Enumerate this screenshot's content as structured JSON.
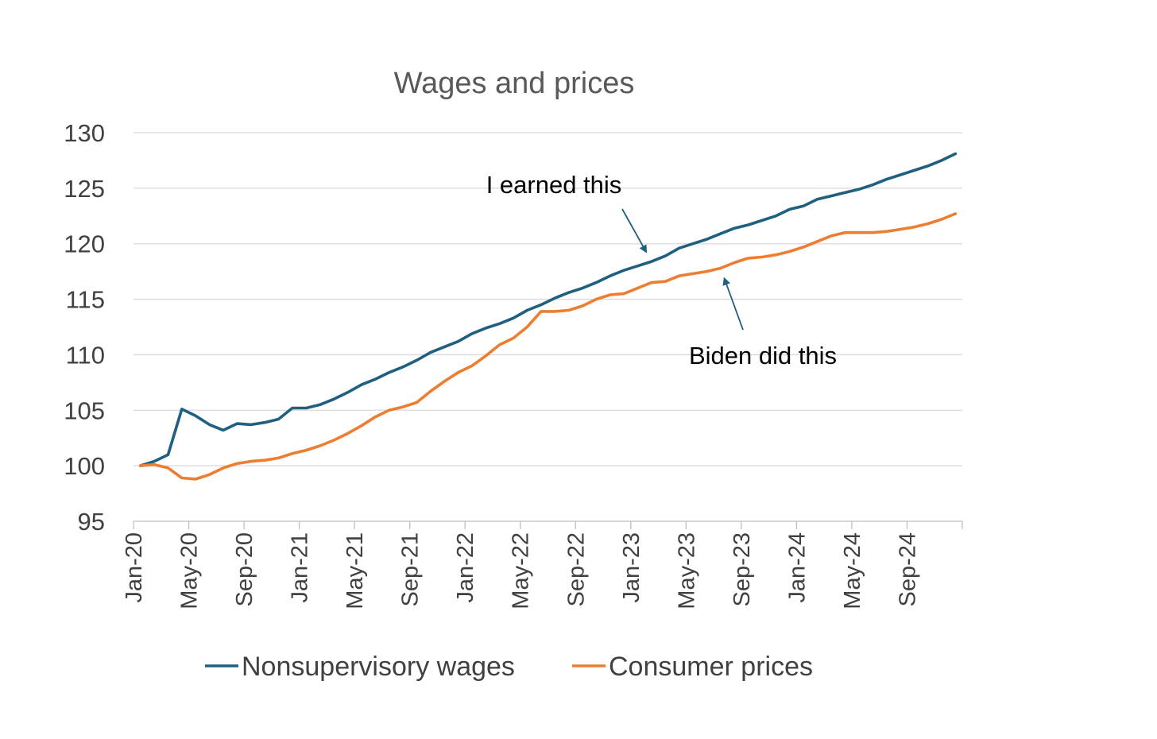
{
  "chart_data": {
    "type": "line",
    "title": "Wages and prices",
    "xlabel": "",
    "ylabel": "",
    "ylim": [
      95,
      130
    ],
    "yticks": [
      "95",
      "100",
      "105",
      "110",
      "115",
      "120",
      "125",
      "130"
    ],
    "grid": true,
    "legend_position": "bottom",
    "x_tick_labels": [
      "Jan-20",
      "May-20",
      "Sep-20",
      "Jan-21",
      "May-21",
      "Sep-21",
      "Jan-22",
      "May-22",
      "Sep-22",
      "Jan-23",
      "May-23",
      "Sep-23",
      "Jan-24",
      "May-24",
      "Sep-24"
    ],
    "x": [
      "Jan-20",
      "Feb-20",
      "Mar-20",
      "Apr-20",
      "May-20",
      "Jun-20",
      "Jul-20",
      "Aug-20",
      "Sep-20",
      "Oct-20",
      "Nov-20",
      "Dec-20",
      "Jan-21",
      "Feb-21",
      "Mar-21",
      "Apr-21",
      "May-21",
      "Jun-21",
      "Jul-21",
      "Aug-21",
      "Sep-21",
      "Oct-21",
      "Nov-21",
      "Dec-21",
      "Jan-22",
      "Feb-22",
      "Mar-22",
      "Apr-22",
      "May-22",
      "Jun-22",
      "Jul-22",
      "Aug-22",
      "Sep-22",
      "Oct-22",
      "Nov-22",
      "Dec-22",
      "Jan-23",
      "Feb-23",
      "Mar-23",
      "Apr-23",
      "May-23",
      "Jun-23",
      "Jul-23",
      "Aug-23",
      "Sep-23",
      "Oct-23",
      "Nov-23",
      "Dec-23",
      "Jan-24",
      "Feb-24",
      "Mar-24",
      "Apr-24",
      "May-24",
      "Jun-24",
      "Jul-24",
      "Aug-24",
      "Sep-24",
      "Oct-24",
      "Nov-24",
      "Dec-24"
    ],
    "series": [
      {
        "name": "Nonsupervisory wages",
        "color": "#1f5f80",
        "values": [
          100.0,
          100.4,
          101.0,
          105.1,
          104.5,
          103.7,
          103.2,
          103.8,
          103.7,
          103.9,
          104.2,
          105.2,
          105.2,
          105.5,
          106.0,
          106.6,
          107.3,
          107.8,
          108.4,
          108.9,
          109.5,
          110.2,
          110.7,
          111.2,
          111.9,
          112.4,
          112.8,
          113.3,
          114.0,
          114.5,
          115.1,
          115.6,
          116.0,
          116.5,
          117.1,
          117.6,
          118.0,
          118.4,
          118.9,
          119.6,
          120.0,
          120.4,
          120.9,
          121.4,
          121.7,
          122.1,
          122.5,
          123.1,
          123.4,
          124.0,
          124.3,
          124.6,
          124.9,
          125.3,
          125.8,
          126.2,
          126.6,
          127.0,
          127.5,
          128.1
        ]
      },
      {
        "name": "Consumer prices",
        "color": "#ed7d31",
        "values": [
          100.0,
          100.1,
          99.8,
          98.9,
          98.8,
          99.2,
          99.8,
          100.2,
          100.4,
          100.5,
          100.7,
          101.1,
          101.4,
          101.8,
          102.3,
          102.9,
          103.6,
          104.4,
          105.0,
          105.3,
          105.7,
          106.7,
          107.6,
          108.4,
          109.0,
          109.9,
          110.9,
          111.5,
          112.5,
          113.9,
          113.9,
          114.0,
          114.4,
          115.0,
          115.4,
          115.5,
          116.0,
          116.5,
          116.6,
          117.1,
          117.3,
          117.5,
          117.8,
          118.3,
          118.7,
          118.8,
          119.0,
          119.3,
          119.7,
          120.2,
          120.7,
          121.0,
          121.0,
          121.0,
          121.1,
          121.3,
          121.5,
          121.8,
          122.2,
          122.7
        ]
      }
    ],
    "annotations": [
      {
        "text": "I earned this",
        "target_series": "Nonsupervisory wages",
        "target_x": "Feb-23"
      },
      {
        "text": "Biden did this",
        "target_series": "Consumer prices",
        "target_x": "Jul-23"
      }
    ]
  }
}
